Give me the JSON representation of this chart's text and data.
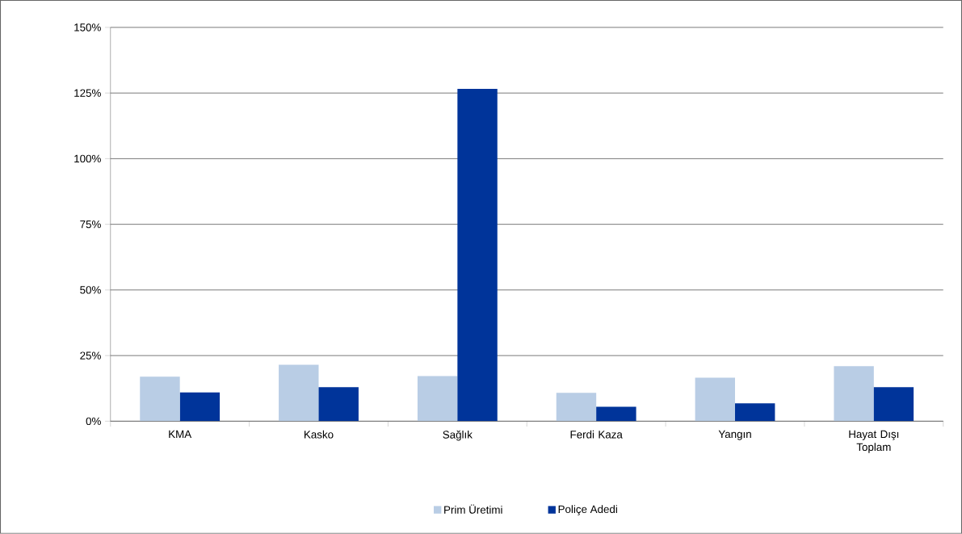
{
  "chart_data": {
    "type": "bar",
    "categories": [
      "KMA",
      "Kasko",
      "Sağlık",
      "Ferdi Kaza",
      "Yangın",
      "Hayat Dışı Toplam"
    ],
    "series": [
      {
        "name": "Prim Üretimi",
        "color": "#b9cde5",
        "values": [
          17,
          21.5,
          17.2,
          10.8,
          16.6,
          21
        ]
      },
      {
        "name": "Poliçe Adedi",
        "color": "#00349a",
        "values": [
          11,
          13,
          126.6,
          5.5,
          6.8,
          13
        ]
      }
    ],
    "ylim": [
      0,
      150
    ],
    "yticks": [
      {
        "value": 0,
        "label": "0%"
      },
      {
        "value": 25,
        "label": "25%"
      },
      {
        "value": 50,
        "label": "50%"
      },
      {
        "value": 75,
        "label": "75%"
      },
      {
        "value": 100,
        "label": "100%"
      },
      {
        "value": 125,
        "label": "125%"
      },
      {
        "value": 150,
        "label": "150%"
      }
    ],
    "grid": "y",
    "legend": "bottom"
  }
}
